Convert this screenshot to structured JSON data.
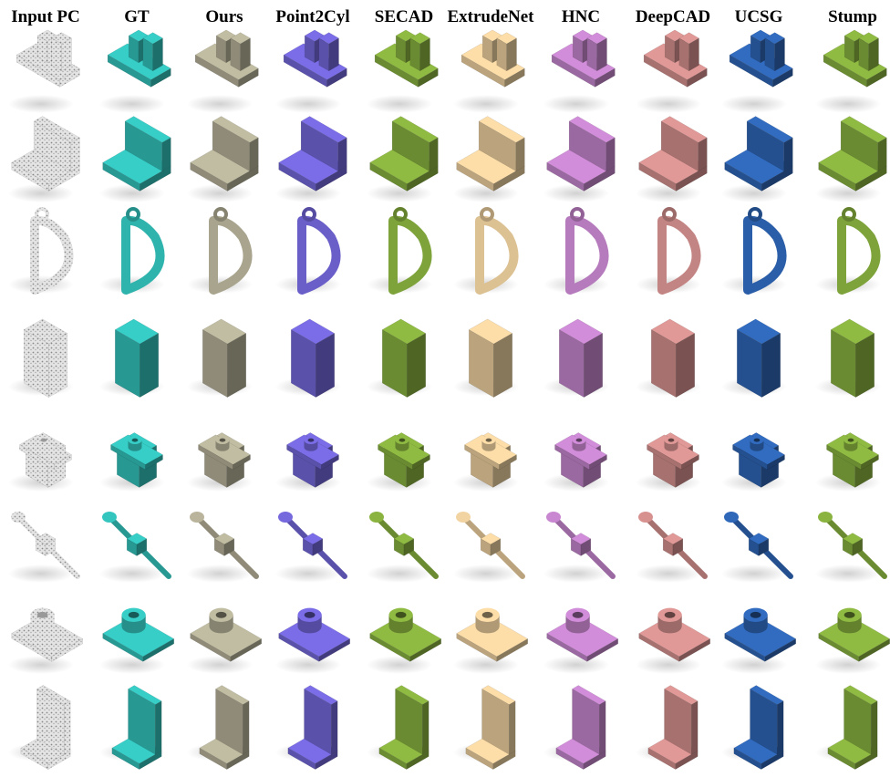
{
  "header": {
    "columns": [
      "Input PC",
      "GT",
      "Ours",
      "Point2Cyl",
      "SECAD",
      "ExtrudeNet",
      "HNC",
      "DeepCAD",
      "UCSG",
      "Stump"
    ]
  }
}
